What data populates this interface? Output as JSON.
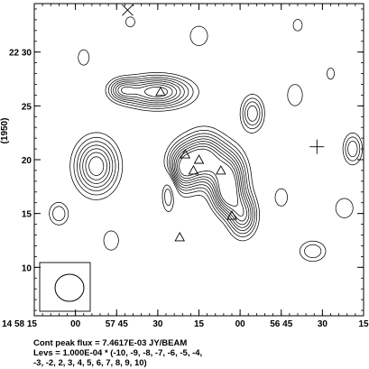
{
  "chart_data": {
    "type": "contour",
    "title": "",
    "xlabel": "",
    "ylabel": "(1950)",
    "x_ticks": [
      {
        "label": "14 58 15",
        "value": 0
      },
      {
        "label": "00",
        "value": 15
      },
      {
        "label": "57 45",
        "value": 30
      },
      {
        "label": "30",
        "value": 45
      },
      {
        "label": "15",
        "value": 60
      },
      {
        "label": "00",
        "value": 75
      },
      {
        "label": "56 45",
        "value": 90
      },
      {
        "label": "30",
        "value": 105
      },
      {
        "label": "15",
        "value": 120
      }
    ],
    "xlim": [
      0,
      120
    ],
    "y_ticks": [
      {
        "label": "22 30",
        "value": 30
      },
      {
        "label": "25",
        "value": 25
      },
      {
        "label": "20",
        "value": 20
      },
      {
        "label": "15",
        "value": 15
      },
      {
        "label": "10",
        "value": 10
      }
    ],
    "ylim": [
      5.5,
      34.5
    ],
    "caption_lines": [
      "Cont peak flux =  7.4617E-03 JY/BEAM",
      "Levs = 1.000E-04 * (-10, -9, -8, -7, -6, -5, -4,",
      "-3, -2, 2, 3, 4, 5, 6, 7, 8, 9, 10)"
    ],
    "peak_flux": "7.4617E-03 JY/BEAM",
    "level_unit": "1.000E-04",
    "levels": [
      -10,
      -9,
      -8,
      -7,
      -6,
      -5,
      -4,
      -3,
      -2,
      2,
      3,
      4,
      5,
      6,
      7,
      8,
      9,
      10
    ],
    "sources": [
      {
        "x": 22.6,
        "y": 19.4,
        "sx": 5.5,
        "sy": 1.8,
        "peak": 9
      },
      {
        "x": 44.7,
        "y": 26.3,
        "sx": 8.5,
        "sy": 1.0,
        "peak": 10
      },
      {
        "x": 32.0,
        "y": 26.5,
        "sx": 3.5,
        "sy": 0.7,
        "peak": 5
      },
      {
        "x": 79.5,
        "y": 24.3,
        "sx": 3.0,
        "sy": 1.2,
        "peak": 6
      },
      {
        "x": 54.0,
        "y": 19.2,
        "sx": 4.2,
        "sy": 1.5,
        "peak": 9
      },
      {
        "x": 62.0,
        "y": 20.2,
        "sx": 5.0,
        "sy": 1.6,
        "peak": 10
      },
      {
        "x": 71.0,
        "y": 18.5,
        "sx": 4.5,
        "sy": 1.7,
        "peak": 9
      },
      {
        "x": 76.0,
        "y": 14.8,
        "sx": 3.6,
        "sy": 1.4,
        "peak": 8
      },
      {
        "x": 70.0,
        "y": 16.5,
        "sx": 3.5,
        "sy": 1.2,
        "peak": 6
      },
      {
        "x": 116.0,
        "y": 21.0,
        "sx": 2.6,
        "sy": 1.1,
        "peak": 5
      },
      {
        "x": 101.5,
        "y": 11.5,
        "sx": 4.0,
        "sy": 0.8,
        "peak": 4
      },
      {
        "x": 18.0,
        "y": 29.5,
        "sx": 2.2,
        "sy": 0.8,
        "peak": 3
      },
      {
        "x": 49.0,
        "y": 17.0,
        "sx": 2.0,
        "sy": 1.4,
        "peak": -5
      },
      {
        "x": 9.0,
        "y": 15.0,
        "sx": 3.0,
        "sy": 0.9,
        "peak": -4
      },
      {
        "x": 95.0,
        "y": 26.0,
        "sx": 3.0,
        "sy": 1.1,
        "peak": -3
      },
      {
        "x": 113.0,
        "y": 15.5,
        "sx": 3.5,
        "sy": 1.0,
        "peak": -3
      },
      {
        "x": 28.0,
        "y": 12.5,
        "sx": 3.0,
        "sy": 1.0,
        "peak": -3
      },
      {
        "x": 60.0,
        "y": 31.5,
        "sx": 3.5,
        "sy": 1.0,
        "peak": -3
      },
      {
        "x": 90.0,
        "y": 16.5,
        "sx": 2.5,
        "sy": 0.9,
        "peak": -3
      },
      {
        "x": 96.0,
        "y": 32.5,
        "sx": 2.5,
        "sy": 0.8,
        "peak": -2.5
      },
      {
        "x": 108.0,
        "y": 28.0,
        "sx": 2.0,
        "sy": 0.8,
        "peak": 2.5
      },
      {
        "x": 35.0,
        "y": 32.8,
        "sx": 2.5,
        "sy": 0.7,
        "peak": -2.5
      }
    ],
    "components": [
      {
        "x": 46.0,
        "y": 26.3
      },
      {
        "x": 55.0,
        "y": 20.5
      },
      {
        "x": 60.0,
        "y": 20.0
      },
      {
        "x": 58.0,
        "y": 19.0
      },
      {
        "x": 68.0,
        "y": 19.0
      },
      {
        "x": 72.0,
        "y": 14.8
      },
      {
        "x": 53.0,
        "y": 12.8
      }
    ],
    "crosses": [
      {
        "x": 34.0,
        "y": 33.9,
        "style": "x"
      },
      {
        "x": 103.0,
        "y": 21.2,
        "style": "plus"
      }
    ],
    "beam_box": {
      "label": "beam"
    }
  }
}
